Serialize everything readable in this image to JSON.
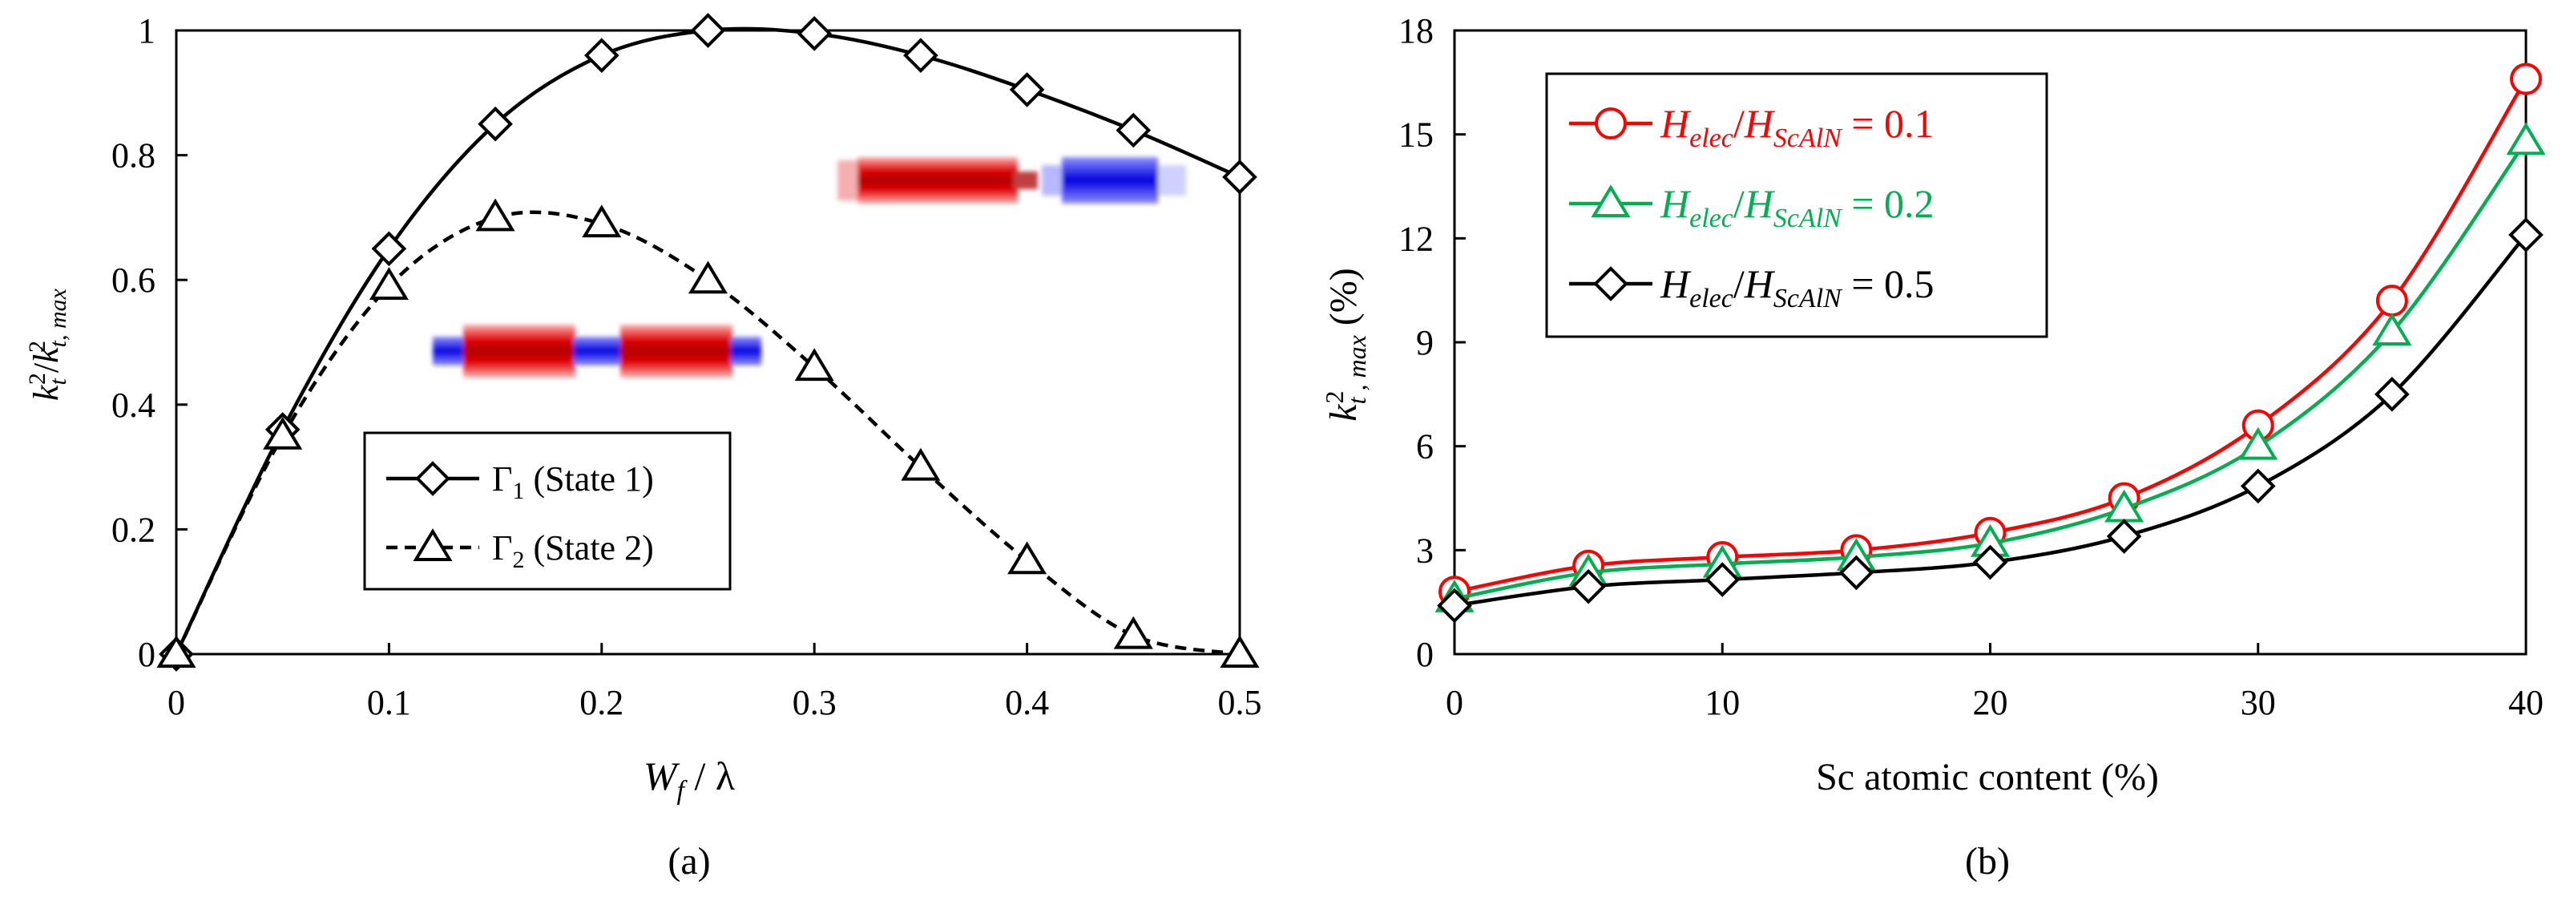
{
  "chart_data": [
    {
      "type": "line",
      "panel_label": "(a)",
      "xlabel": {
        "main": "W",
        "sub": "f",
        "tail": " / λ"
      },
      "ylabel": {
        "k": "k",
        "sub_t": "t",
        "sup_2": "2",
        "slash": "/",
        "k2": "k",
        "sub_t2": "t",
        "sub_max": ", max",
        "sup_22": "2"
      },
      "xlim": [
        0,
        0.5
      ],
      "ylim": [
        0,
        1
      ],
      "xticks": [
        0,
        0.1,
        0.2,
        0.3,
        0.4,
        0.5
      ],
      "xtick_labels": [
        "0",
        "0.1",
        "0.2",
        "0.3",
        "0.4",
        "0.5"
      ],
      "yticks": [
        0,
        0.2,
        0.4,
        0.6,
        0.8,
        1
      ],
      "ytick_labels": [
        "0",
        "0.2",
        "0.4",
        "0.6",
        "0.8",
        "1"
      ],
      "legend": {
        "position": "bottom-center"
      },
      "series": [
        {
          "name": "Γ1 (State 1)",
          "legend_symbol": "Γ",
          "legend_sub": "1",
          "legend_text": " (State 1)",
          "marker": "diamond",
          "line": "solid",
          "color": "#000000",
          "x": [
            0,
            0.05,
            0.1,
            0.15,
            0.2,
            0.25,
            0.3,
            0.35,
            0.4,
            0.45,
            0.5
          ],
          "y": [
            0,
            0.36,
            0.65,
            0.85,
            0.96,
            1.0,
            0.995,
            0.96,
            0.905,
            0.84,
            0.765
          ]
        },
        {
          "name": "Γ2 (State 2)",
          "legend_symbol": "Γ",
          "legend_sub": "2",
          "legend_text": " (State 2)",
          "marker": "triangle",
          "line": "dashed",
          "color": "#000000",
          "x": [
            0,
            0.05,
            0.1,
            0.15,
            0.2,
            0.25,
            0.3,
            0.35,
            0.4,
            0.45,
            0.5
          ],
          "y": [
            0,
            0.35,
            0.59,
            0.7,
            0.69,
            0.6,
            0.46,
            0.3,
            0.15,
            0.03,
            0.0
          ]
        }
      ]
    },
    {
      "type": "line",
      "panel_label": "(b)",
      "xlabel": "Sc atomic content (%)",
      "ylabel": {
        "k": "k",
        "sub_t": "t",
        "sup_2": "2",
        "sub_max": ", max",
        "unit": " (%)"
      },
      "xlim": [
        0,
        40
      ],
      "ylim": [
        0,
        18
      ],
      "xticks": [
        0,
        10,
        20,
        30,
        40
      ],
      "xtick_labels": [
        "0",
        "10",
        "20",
        "30",
        "40"
      ],
      "yticks": [
        0,
        3,
        6,
        9,
        12,
        15,
        18
      ],
      "ytick_labels": [
        "0",
        "3",
        "6",
        "9",
        "12",
        "15",
        "18"
      ],
      "legend": {
        "position": "top-left"
      },
      "series": [
        {
          "name": "Helec/HScAlN = 0.1",
          "legend_h1": "H",
          "legend_s1": "elec",
          "legend_slash": "/",
          "legend_h2": "H",
          "legend_s2": "ScAlN",
          "legend_eq": " = 0.1",
          "marker": "circle",
          "line": "solid",
          "color": "#ff0000",
          "x": [
            0,
            5,
            10,
            15,
            20,
            25,
            30,
            35,
            40
          ],
          "y": [
            1.8,
            2.55,
            2.8,
            3.0,
            3.5,
            4.5,
            6.6,
            10.2,
            16.6
          ]
        },
        {
          "name": "Helec/HScAlN = 0.2",
          "legend_h1": "H",
          "legend_s1": "elec",
          "legend_slash": "/",
          "legend_h2": "H",
          "legend_s2": "ScAlN",
          "legend_eq": " = 0.2",
          "marker": "triangle",
          "line": "solid",
          "color": "#00b050",
          "x": [
            0,
            5,
            10,
            15,
            20,
            25,
            30,
            35,
            40
          ],
          "y": [
            1.6,
            2.35,
            2.6,
            2.8,
            3.2,
            4.2,
            6.0,
            9.3,
            14.8
          ]
        },
        {
          "name": "Helec/HScAlN = 0.5",
          "legend_h1": "H",
          "legend_s1": "elec",
          "legend_slash": "/",
          "legend_h2": "H",
          "legend_s2": "ScAlN",
          "legend_eq": " = 0.5",
          "marker": "diamond",
          "line": "solid",
          "color": "#000000",
          "x": [
            0,
            5,
            10,
            15,
            20,
            25,
            30,
            35,
            40
          ],
          "y": [
            1.4,
            1.95,
            2.15,
            2.35,
            2.65,
            3.4,
            4.85,
            7.5,
            12.1
          ]
        }
      ]
    }
  ]
}
